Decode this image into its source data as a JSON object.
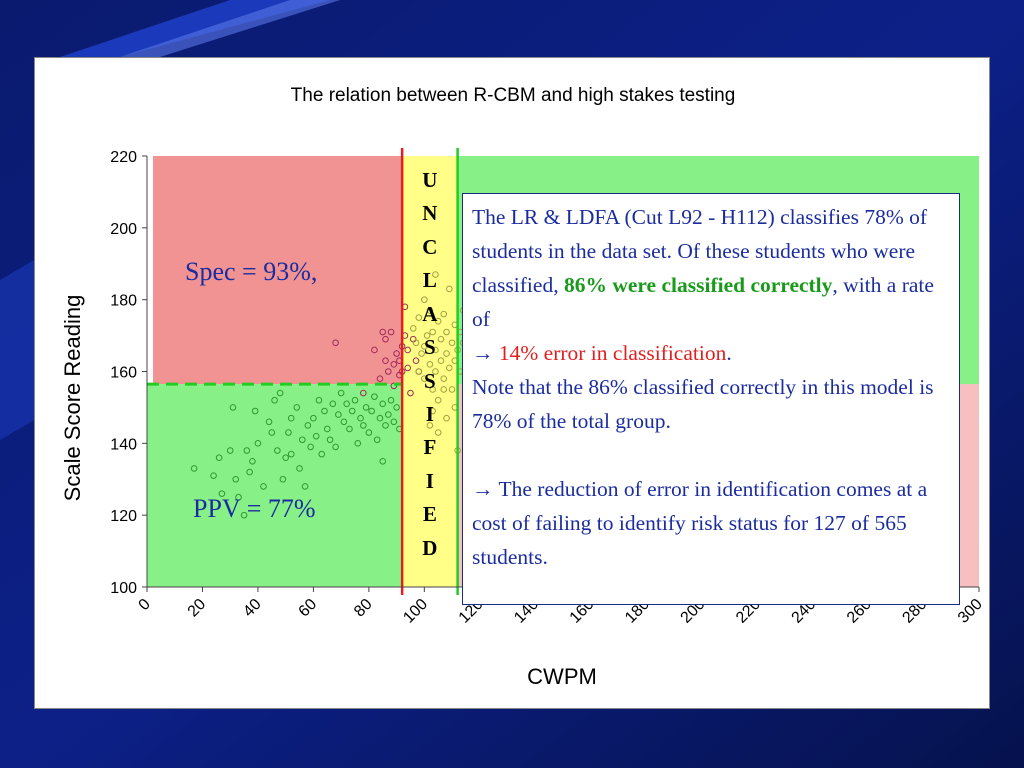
{
  "colors": {
    "background_dark": "#0a1a6e",
    "background_stripe": "#1e40c8",
    "region_red": "#f08080",
    "region_green": "#7af07a",
    "region_yellow": "#ffff88",
    "cut_low_line": "#e02020",
    "cut_high_line": "#22cc22",
    "textbox_text": "#1b2d9e",
    "highlight_green": "#1a9a1a",
    "highlight_red": "#e02020"
  },
  "chart_data": {
    "type": "scatter",
    "title": "The relation between R-CBM and high stakes testing",
    "xlabel": "CWPM",
    "ylabel": "Scale Score Reading",
    "xlim": [
      0,
      300
    ],
    "ylim": [
      100,
      220
    ],
    "x_ticks": [
      0,
      20,
      40,
      60,
      80,
      100,
      120,
      140,
      160,
      180,
      200,
      220,
      240,
      260,
      280,
      300
    ],
    "y_ticks": [
      100,
      120,
      140,
      160,
      180,
      200,
      220
    ],
    "cut_low": 92,
    "cut_high": 112,
    "benchmark_score": 156.5,
    "unclassified_label": [
      "U",
      "N",
      "C",
      "L",
      "A",
      "S",
      "S",
      "I",
      "F",
      "I",
      "E",
      "D"
    ],
    "region_labels": {
      "spec": "Spec = 93%,",
      "ppv": "PPV = 77%"
    },
    "points_red": [
      [
        68,
        168
      ],
      [
        78,
        154
      ],
      [
        82,
        166
      ],
      [
        84,
        158
      ],
      [
        85,
        171
      ],
      [
        86,
        169
      ],
      [
        86,
        163
      ],
      [
        87,
        160
      ],
      [
        88,
        171
      ],
      [
        89,
        156
      ],
      [
        89,
        162
      ],
      [
        90,
        165
      ],
      [
        91,
        163
      ],
      [
        91,
        159
      ],
      [
        92,
        167
      ],
      [
        92,
        160
      ],
      [
        93,
        178
      ],
      [
        93,
        170
      ],
      [
        94,
        166
      ],
      [
        94,
        161
      ],
      [
        95,
        154
      ],
      [
        96,
        169
      ],
      [
        97,
        163
      ],
      [
        98,
        160
      ]
    ],
    "points_yellow_area": [
      [
        96,
        172
      ],
      [
        97,
        168
      ],
      [
        98,
        175
      ],
      [
        98,
        160
      ],
      [
        99,
        165
      ],
      [
        100,
        167
      ],
      [
        100,
        158
      ],
      [
        101,
        170
      ],
      [
        102,
        162
      ],
      [
        102,
        177
      ],
      [
        103,
        155
      ],
      [
        103,
        171
      ],
      [
        104,
        166
      ],
      [
        104,
        160
      ],
      [
        104,
        187
      ],
      [
        105,
        174
      ],
      [
        105,
        152
      ],
      [
        106,
        163
      ],
      [
        106,
        169
      ],
      [
        107,
        158
      ],
      [
        107,
        176
      ],
      [
        108,
        165
      ],
      [
        108,
        147
      ],
      [
        108,
        171
      ],
      [
        109,
        161
      ],
      [
        109,
        183
      ],
      [
        110,
        168
      ],
      [
        110,
        155
      ],
      [
        111,
        173
      ],
      [
        111,
        163
      ],
      [
        111,
        150
      ],
      [
        112,
        166
      ],
      [
        113,
        160
      ],
      [
        113,
        171
      ],
      [
        114,
        168
      ],
      [
        114,
        177
      ],
      [
        115,
        156
      ],
      [
        115,
        164
      ],
      [
        116,
        170
      ],
      [
        117,
        161
      ],
      [
        117,
        150
      ],
      [
        118,
        166
      ],
      [
        118,
        175
      ],
      [
        119,
        159
      ],
      [
        100,
        180
      ],
      [
        102,
        145
      ],
      [
        105,
        143
      ],
      [
        107,
        155
      ],
      [
        103,
        149
      ],
      [
        116,
        146
      ],
      [
        112,
        138
      ]
    ],
    "points_green": [
      [
        17,
        133
      ],
      [
        24,
        131
      ],
      [
        26,
        136
      ],
      [
        30,
        138
      ],
      [
        32,
        130
      ],
      [
        33,
        125
      ],
      [
        36,
        138
      ],
      [
        37,
        132
      ],
      [
        38,
        135
      ],
      [
        39,
        149
      ],
      [
        40,
        140
      ],
      [
        42,
        128
      ],
      [
        44,
        146
      ],
      [
        46,
        152
      ],
      [
        47,
        138
      ],
      [
        49,
        130
      ],
      [
        50,
        136
      ],
      [
        51,
        143
      ],
      [
        52,
        147
      ],
      [
        52,
        137
      ],
      [
        54,
        150
      ],
      [
        55,
        133
      ],
      [
        56,
        141
      ],
      [
        58,
        145
      ],
      [
        59,
        139
      ],
      [
        60,
        147
      ],
      [
        61,
        142
      ],
      [
        62,
        152
      ],
      [
        63,
        137
      ],
      [
        64,
        149
      ],
      [
        65,
        144
      ],
      [
        66,
        141
      ],
      [
        67,
        151
      ],
      [
        68,
        139
      ],
      [
        69,
        148
      ],
      [
        70,
        154
      ],
      [
        71,
        146
      ],
      [
        72,
        151
      ],
      [
        73,
        144
      ],
      [
        74,
        149
      ],
      [
        75,
        152
      ],
      [
        76,
        140
      ],
      [
        77,
        147
      ],
      [
        78,
        145
      ],
      [
        79,
        150
      ],
      [
        80,
        143
      ],
      [
        81,
        149
      ],
      [
        82,
        153
      ],
      [
        83,
        141
      ],
      [
        84,
        147
      ],
      [
        85,
        135
      ],
      [
        85,
        151
      ],
      [
        86,
        145
      ],
      [
        87,
        148
      ],
      [
        88,
        152
      ],
      [
        89,
        146
      ],
      [
        90,
        150
      ],
      [
        91,
        144
      ],
      [
        27,
        126
      ],
      [
        35,
        120
      ],
      [
        57,
        128
      ],
      [
        31,
        150
      ],
      [
        48,
        154
      ],
      [
        45,
        143
      ]
    ]
  },
  "textbox": {
    "line1": "The LR & LDFA (Cut L92 - H112) classifies 78% of students in the data set. Of these students who were classified,",
    "bold_green": "86% were classified correctly",
    "line2": ", with a rate of",
    "arrow1": "→",
    "red_error": "14% error in classification",
    "period": ".",
    "note": "Note that the 86% classified correctly in this model is 78% of the total group.",
    "arrow2": "→",
    "reduction": "The reduction of error in identification comes at a cost of failing to identify risk status for 127 of 565 students."
  }
}
